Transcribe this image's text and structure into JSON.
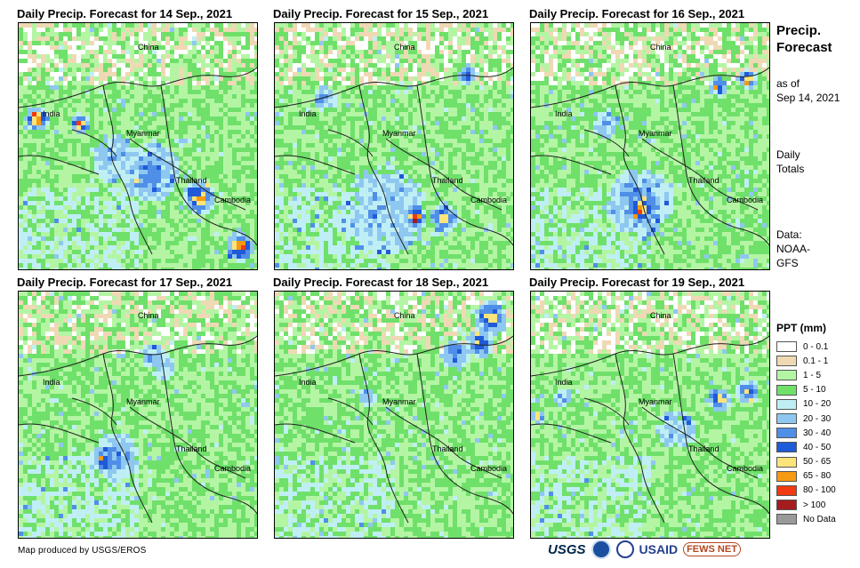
{
  "panels": [
    {
      "title": "Daily Precip. Forecast for 14 Sep., 2021",
      "labels": {
        "china": "China",
        "india": "India",
        "myanmar": "Myanmar",
        "thailand": "Thailand",
        "cambodia": "Cambodia"
      }
    },
    {
      "title": "Daily Precip. Forecast for 15 Sep., 2021",
      "labels": {
        "china": "China",
        "india": "India",
        "myanmar": "Myanmar",
        "thailand": "Thailand",
        "cambodia": "Cambodia"
      }
    },
    {
      "title": "Daily Precip. Forecast for 16 Sep., 2021",
      "labels": {
        "china": "China",
        "india": "India",
        "myanmar": "Myanmar",
        "thailand": "Thailand",
        "cambodia": "Cambodia"
      }
    },
    {
      "title": "Daily Precip. Forecast for 17 Sep., 2021",
      "labels": {
        "china": "China",
        "india": "India",
        "myanmar": "Myanmar",
        "thailand": "Thailand",
        "cambodia": "Cambodia"
      }
    },
    {
      "title": "Daily Precip. Forecast for 18 Sep., 2021",
      "labels": {
        "china": "China",
        "india": "India",
        "myanmar": "Myanmar",
        "thailand": "Thailand",
        "cambodia": "Cambodia"
      }
    },
    {
      "title": "Daily Precip. Forecast for 19 Sep., 2021",
      "labels": {
        "china": "China",
        "india": "India",
        "myanmar": "Myanmar",
        "thailand": "Thailand",
        "cambodia": "Cambodia"
      }
    }
  ],
  "sidebar": {
    "title_line1": "Precip.",
    "title_line2": "Forecast",
    "asof_line1": "as of",
    "asof_line2": "Sep 14, 2021",
    "totals_line1": "Daily",
    "totals_line2": "Totals",
    "data_line1": "Data:",
    "data_line2": "NOAA-",
    "data_line3": "GFS"
  },
  "legend": {
    "title": "PPT (mm)",
    "items": [
      {
        "label": "0 - 0.1",
        "color": "#ffffff"
      },
      {
        "label": "0.1 - 1",
        "color": "#efd9b4"
      },
      {
        "label": "1 - 5",
        "color": "#b4f5a4"
      },
      {
        "label": "5 - 10",
        "color": "#6fe06a"
      },
      {
        "label": "10 - 20",
        "color": "#bfeff5"
      },
      {
        "label": "20 - 30",
        "color": "#8ec8f0"
      },
      {
        "label": "30 - 40",
        "color": "#4f8fe8"
      },
      {
        "label": "40 - 50",
        "color": "#1f5ad8"
      },
      {
        "label": "50 - 65",
        "color": "#fde47a"
      },
      {
        "label": "65 - 80",
        "color": "#f59a12"
      },
      {
        "label": "80 - 100",
        "color": "#f03a12"
      },
      {
        "label": "> 100",
        "color": "#a41c1c"
      },
      {
        "label": "No Data",
        "color": "#9a9a9a"
      }
    ]
  },
  "footer": {
    "credit": "Map produced by USGS/EROS",
    "logo_usgs": "USGS",
    "logo_usaid": "USAID",
    "logo_fews": "FEWS NET"
  }
}
